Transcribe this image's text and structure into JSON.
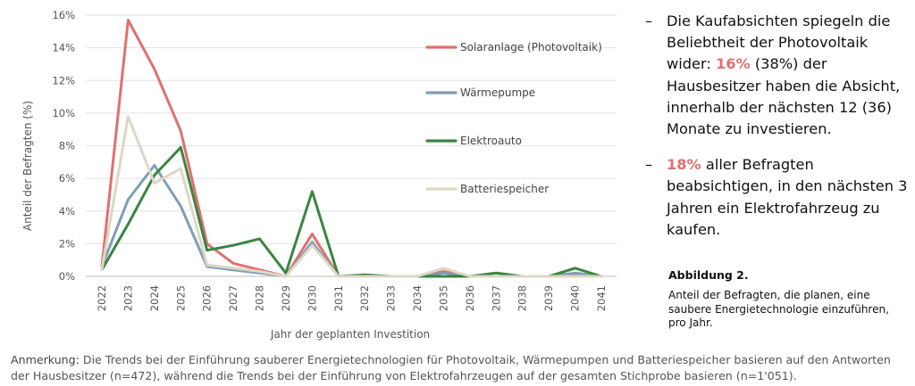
{
  "chart_data": {
    "type": "line",
    "x": [
      "2022",
      "2023",
      "2024",
      "2025",
      "2026",
      "2027",
      "2028",
      "2029",
      "2030",
      "2031",
      "2032",
      "2033",
      "2034",
      "2035",
      "2036",
      "2037",
      "2038",
      "2039",
      "2040",
      "2041"
    ],
    "series": [
      {
        "name": "Solaranlage (Photovoltaik)",
        "color": "#e07070",
        "values": [
          0.6,
          15.7,
          12.7,
          8.9,
          2.0,
          0.8,
          0.4,
          0.0,
          2.6,
          0.0,
          0.0,
          0.0,
          0.0,
          0.3,
          0.0,
          0.0,
          0.0,
          0.0,
          0.1,
          0.0
        ]
      },
      {
        "name": "Wärmepumpe",
        "color": "#7f9fb5",
        "values": [
          0.6,
          4.7,
          6.8,
          4.3,
          0.6,
          0.4,
          0.2,
          0.0,
          2.1,
          0.0,
          0.0,
          0.0,
          0.0,
          0.2,
          0.0,
          0.0,
          0.0,
          0.0,
          0.2,
          0.0
        ]
      },
      {
        "name": "Elektroauto",
        "color": "#3a8540",
        "values": [
          0.4,
          3.2,
          6.2,
          7.9,
          1.6,
          1.9,
          2.3,
          0.2,
          5.2,
          0.0,
          0.1,
          0.0,
          0.0,
          0.0,
          0.0,
          0.2,
          0.0,
          0.0,
          0.5,
          0.0
        ]
      },
      {
        "name": "Batteriespeicher",
        "color": "#ddd8c4",
        "values": [
          0.4,
          9.8,
          5.7,
          6.6,
          0.7,
          0.5,
          0.3,
          0.0,
          1.9,
          0.0,
          0.0,
          0.0,
          0.0,
          0.5,
          0.0,
          0.0,
          0.0,
          0.0,
          0.0,
          0.0
        ]
      }
    ],
    "yticks": [
      "0%",
      "2%",
      "4%",
      "6%",
      "8%",
      "10%",
      "12%",
      "14%",
      "16%"
    ],
    "ylim": [
      0,
      16
    ],
    "xlabel": "Jahr der geplanten Investition",
    "ylabel": "Anteil der Befragten (%)",
    "legend_position": "right",
    "grid": "horizontal"
  },
  "panel": {
    "dash": "–",
    "bullet1": {
      "prefix": "Die Kaufabsichten spiegeln die Beliebtheit der Photovoltaik wider: ",
      "highlight": "16%",
      "suffix": " (38%) der Hausbesitzer haben die Absicht, innerhalb der nächsten 12 (36) Monate zu investieren."
    },
    "bullet2": {
      "prefix": " ",
      "highlight": "18%",
      "suffix": " aller Befragten beabsichtigen, in den nächsten 3 Jahren ein Elektrofahrzeug zu kaufen."
    },
    "highlight_color": "#e07070"
  },
  "figure": {
    "title": "Abbildung 2.",
    "caption": "Anteil der Befragten, die planen, eine saubere Energietechnologie einzuführen, pro Jahr."
  },
  "note": {
    "label": "Anmerkung:",
    "text": " Die Trends bei der Einführung sauberer Energietechnologien für Photovoltaik, Wärmepumpen und Batteriespeicher basieren auf den Antworten der Hausbesitzer (n=472), während die Trends bei der Einführung von Elektrofahrzeugen auf der gesamten Stichprobe basieren (n=1'051)."
  }
}
